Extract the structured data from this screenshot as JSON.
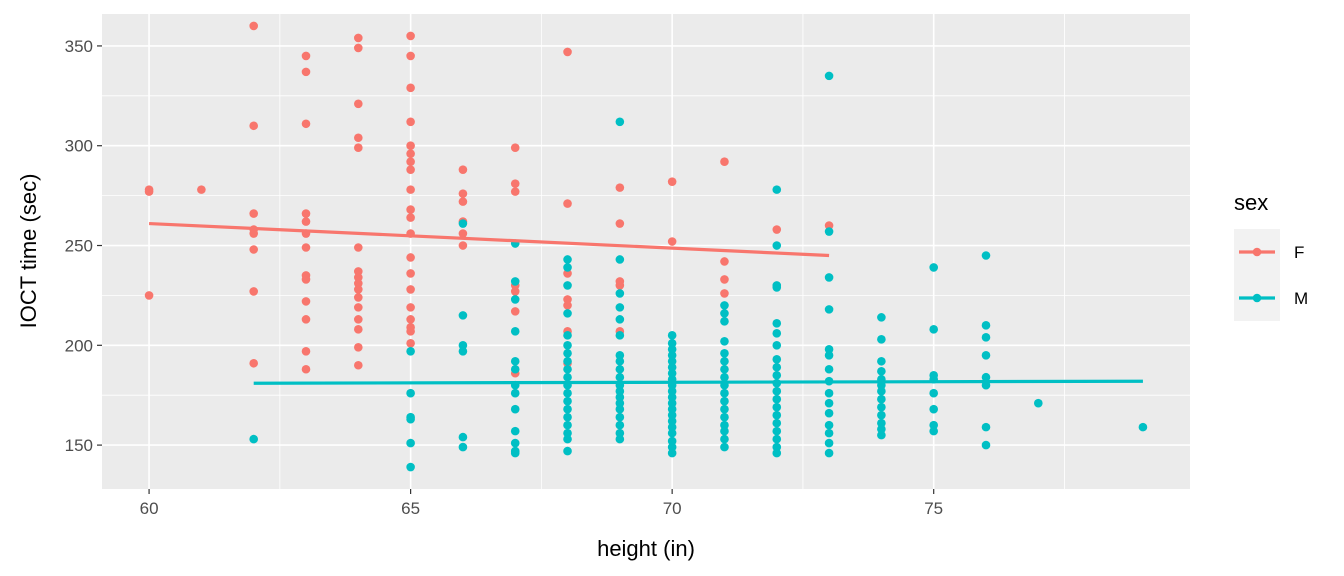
{
  "chart_data": {
    "type": "scatter",
    "title": "",
    "xlabel": "height (in)",
    "ylabel": "IOCT time (sec)",
    "xlim": [
      59.1,
      79.9
    ],
    "ylim": [
      128,
      366
    ],
    "x_ticks": [
      60,
      65,
      70,
      75
    ],
    "y_ticks": [
      150,
      200,
      250,
      300,
      350
    ],
    "grid": true,
    "background": "#ebebeb",
    "legend": {
      "title": "sex",
      "placement": "right",
      "entries": [
        "F",
        "M"
      ]
    },
    "series": [
      {
        "name": "F",
        "color": "#f8766d",
        "points": [
          [
            60,
            277
          ],
          [
            60,
            278
          ],
          [
            60,
            225
          ],
          [
            61,
            278
          ],
          [
            62,
            360
          ],
          [
            62,
            310
          ],
          [
            62,
            266
          ],
          [
            62,
            258
          ],
          [
            62,
            256
          ],
          [
            62,
            248
          ],
          [
            62,
            227
          ],
          [
            62,
            191
          ],
          [
            63,
            345
          ],
          [
            63,
            337
          ],
          [
            63,
            311
          ],
          [
            63,
            266
          ],
          [
            63,
            262
          ],
          [
            63,
            256
          ],
          [
            63,
            249
          ],
          [
            63,
            235
          ],
          [
            63,
            233
          ],
          [
            63,
            222
          ],
          [
            63,
            213
          ],
          [
            63,
            197
          ],
          [
            63,
            188
          ],
          [
            64,
            354
          ],
          [
            64,
            349
          ],
          [
            64,
            321
          ],
          [
            64,
            304
          ],
          [
            64,
            299
          ],
          [
            64,
            249
          ],
          [
            64,
            237
          ],
          [
            64,
            234
          ],
          [
            64,
            231
          ],
          [
            64,
            228
          ],
          [
            64,
            224
          ],
          [
            64,
            219
          ],
          [
            64,
            213
          ],
          [
            64,
            208
          ],
          [
            64,
            199
          ],
          [
            64,
            190
          ],
          [
            65,
            355
          ],
          [
            65,
            345
          ],
          [
            65,
            329
          ],
          [
            65,
            312
          ],
          [
            65,
            300
          ],
          [
            65,
            296
          ],
          [
            65,
            292
          ],
          [
            65,
            288
          ],
          [
            65,
            278
          ],
          [
            65,
            268
          ],
          [
            65,
            264
          ],
          [
            65,
            256
          ],
          [
            65,
            244
          ],
          [
            65,
            236
          ],
          [
            65,
            228
          ],
          [
            65,
            219
          ],
          [
            65,
            213
          ],
          [
            65,
            209
          ],
          [
            65,
            207
          ],
          [
            65,
            201
          ],
          [
            66,
            288
          ],
          [
            66,
            276
          ],
          [
            66,
            272
          ],
          [
            66,
            262
          ],
          [
            66,
            256
          ],
          [
            66,
            250
          ],
          [
            67,
            299
          ],
          [
            67,
            281
          ],
          [
            67,
            277
          ],
          [
            67,
            230
          ],
          [
            67,
            227
          ],
          [
            67,
            217
          ],
          [
            67,
            186
          ],
          [
            68,
            347
          ],
          [
            68,
            271
          ],
          [
            68,
            236
          ],
          [
            68,
            223
          ],
          [
            68,
            220
          ],
          [
            68,
            207
          ],
          [
            68,
            191
          ],
          [
            69,
            279
          ],
          [
            69,
            261
          ],
          [
            69,
            232
          ],
          [
            69,
            230
          ],
          [
            69,
            207
          ],
          [
            70,
            282
          ],
          [
            70,
            252
          ],
          [
            71,
            292
          ],
          [
            71,
            242
          ],
          [
            71,
            233
          ],
          [
            71,
            226
          ],
          [
            72,
            258
          ],
          [
            73,
            260
          ]
        ],
        "trend": [
          [
            60,
            261
          ],
          [
            73,
            245
          ]
        ]
      },
      {
        "name": "M",
        "color": "#00bfc4",
        "points": [
          [
            62,
            153
          ],
          [
            65,
            197
          ],
          [
            65,
            176
          ],
          [
            65,
            164
          ],
          [
            65,
            163
          ],
          [
            65,
            151
          ],
          [
            65,
            139
          ],
          [
            66,
            261
          ],
          [
            66,
            215
          ],
          [
            66,
            200
          ],
          [
            66,
            197
          ],
          [
            66,
            154
          ],
          [
            66,
            149
          ],
          [
            67,
            251
          ],
          [
            67,
            232
          ],
          [
            67,
            223
          ],
          [
            67,
            207
          ],
          [
            67,
            192
          ],
          [
            67,
            188
          ],
          [
            67,
            180
          ],
          [
            67,
            176
          ],
          [
            67,
            168
          ],
          [
            67,
            157
          ],
          [
            67,
            151
          ],
          [
            67,
            147
          ],
          [
            67,
            146
          ],
          [
            68,
            243
          ],
          [
            68,
            239
          ],
          [
            68,
            230
          ],
          [
            68,
            216
          ],
          [
            68,
            205
          ],
          [
            68,
            200
          ],
          [
            68,
            196
          ],
          [
            68,
            192
          ],
          [
            68,
            188
          ],
          [
            68,
            184
          ],
          [
            68,
            180
          ],
          [
            68,
            176
          ],
          [
            68,
            172
          ],
          [
            68,
            168
          ],
          [
            68,
            164
          ],
          [
            68,
            160
          ],
          [
            68,
            156
          ],
          [
            68,
            153
          ],
          [
            68,
            147
          ],
          [
            69,
            312
          ],
          [
            69,
            243
          ],
          [
            69,
            226
          ],
          [
            69,
            219
          ],
          [
            69,
            213
          ],
          [
            69,
            205
          ],
          [
            69,
            195
          ],
          [
            69,
            192
          ],
          [
            69,
            188
          ],
          [
            69,
            184
          ],
          [
            69,
            180
          ],
          [
            69,
            177
          ],
          [
            69,
            174
          ],
          [
            69,
            171
          ],
          [
            69,
            168
          ],
          [
            69,
            164
          ],
          [
            69,
            160
          ],
          [
            69,
            156
          ],
          [
            69,
            153
          ],
          [
            70,
            205
          ],
          [
            70,
            201
          ],
          [
            70,
            198
          ],
          [
            70,
            195
          ],
          [
            70,
            192
          ],
          [
            70,
            189
          ],
          [
            70,
            186
          ],
          [
            70,
            183
          ],
          [
            70,
            180
          ],
          [
            70,
            177
          ],
          [
            70,
            174
          ],
          [
            70,
            171
          ],
          [
            70,
            168
          ],
          [
            70,
            165
          ],
          [
            70,
            162
          ],
          [
            70,
            159
          ],
          [
            70,
            156
          ],
          [
            70,
            152
          ],
          [
            70,
            149
          ],
          [
            70,
            146
          ],
          [
            71,
            220
          ],
          [
            71,
            216
          ],
          [
            71,
            212
          ],
          [
            71,
            202
          ],
          [
            71,
            196
          ],
          [
            71,
            192
          ],
          [
            71,
            188
          ],
          [
            71,
            184
          ],
          [
            71,
            180
          ],
          [
            71,
            176
          ],
          [
            71,
            172
          ],
          [
            71,
            168
          ],
          [
            71,
            164
          ],
          [
            71,
            160
          ],
          [
            71,
            157
          ],
          [
            71,
            153
          ],
          [
            71,
            149
          ],
          [
            72,
            278
          ],
          [
            72,
            250
          ],
          [
            72,
            230
          ],
          [
            72,
            229
          ],
          [
            72,
            211
          ],
          [
            72,
            206
          ],
          [
            72,
            200
          ],
          [
            72,
            193
          ],
          [
            72,
            189
          ],
          [
            72,
            185
          ],
          [
            72,
            181
          ],
          [
            72,
            177
          ],
          [
            72,
            173
          ],
          [
            72,
            169
          ],
          [
            72,
            165
          ],
          [
            72,
            161
          ],
          [
            72,
            157
          ],
          [
            72,
            153
          ],
          [
            72,
            149
          ],
          [
            72,
            146
          ],
          [
            73,
            335
          ],
          [
            73,
            257
          ],
          [
            73,
            234
          ],
          [
            73,
            218
          ],
          [
            73,
            198
          ],
          [
            73,
            195
          ],
          [
            73,
            188
          ],
          [
            73,
            182
          ],
          [
            73,
            176
          ],
          [
            73,
            171
          ],
          [
            73,
            166
          ],
          [
            73,
            160
          ],
          [
            73,
            156
          ],
          [
            73,
            151
          ],
          [
            73,
            146
          ],
          [
            74,
            214
          ],
          [
            74,
            203
          ],
          [
            74,
            192
          ],
          [
            74,
            187
          ],
          [
            74,
            183
          ],
          [
            74,
            180
          ],
          [
            74,
            177
          ],
          [
            74,
            173
          ],
          [
            74,
            169
          ],
          [
            74,
            165
          ],
          [
            74,
            161
          ],
          [
            74,
            158
          ],
          [
            74,
            155
          ],
          [
            75,
            239
          ],
          [
            75,
            208
          ],
          [
            75,
            185
          ],
          [
            75,
            183
          ],
          [
            75,
            176
          ],
          [
            75,
            168
          ],
          [
            75,
            160
          ],
          [
            75,
            157
          ],
          [
            76,
            245
          ],
          [
            76,
            210
          ],
          [
            76,
            204
          ],
          [
            76,
            195
          ],
          [
            76,
            184
          ],
          [
            76,
            180
          ],
          [
            76,
            159
          ],
          [
            76,
            150
          ],
          [
            77,
            171
          ],
          [
            79,
            159
          ]
        ],
        "trend": [
          [
            62,
            181
          ],
          [
            79,
            182
          ]
        ]
      }
    ]
  }
}
